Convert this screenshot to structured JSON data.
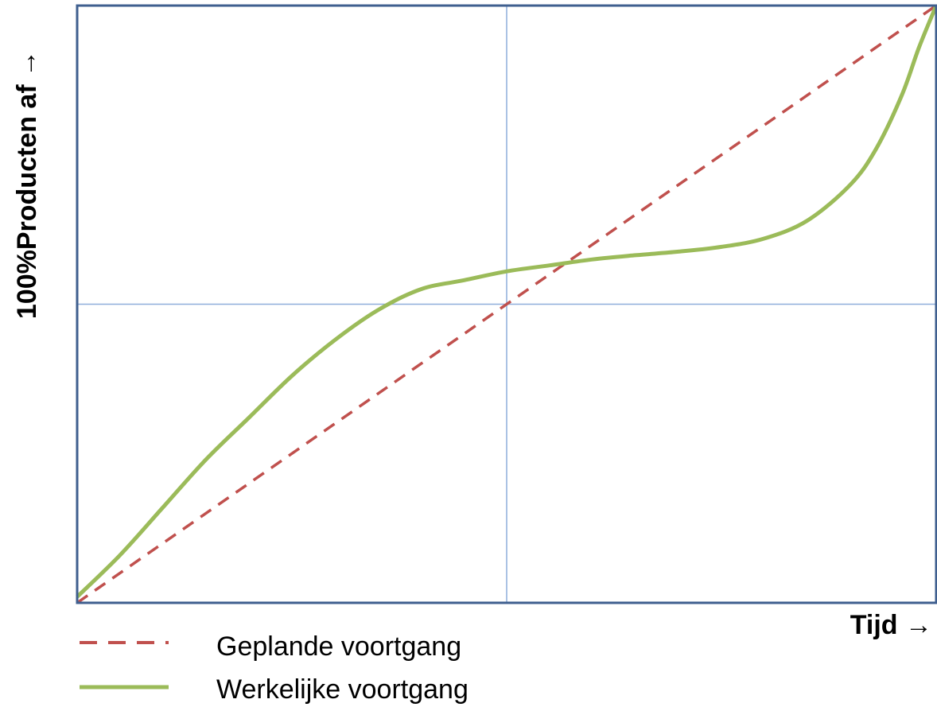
{
  "chart_data": {
    "type": "line",
    "xlabel": "Tijd →",
    "ylabel": "100%Producten af →",
    "xlim": [
      0,
      1
    ],
    "ylim": [
      0,
      1
    ],
    "grid": {
      "x": [
        0.5
      ],
      "y": [
        0.5
      ]
    },
    "legend": "bottom-left",
    "series": [
      {
        "name": "Geplande voortgang",
        "color": "#c0504d",
        "style": "dashed",
        "x": [
          0,
          1
        ],
        "y": [
          0,
          1
        ]
      },
      {
        "name": "Werkelijke voortgang",
        "color": "#9bbb59",
        "style": "solid",
        "x": [
          0,
          0.05,
          0.1,
          0.15,
          0.2,
          0.25,
          0.3,
          0.35,
          0.4,
          0.45,
          0.5,
          0.55,
          0.6,
          0.65,
          0.7,
          0.75,
          0.8,
          0.85,
          0.9,
          0.93,
          0.96,
          0.98,
          1.0
        ],
        "y": [
          0.01,
          0.08,
          0.16,
          0.24,
          0.31,
          0.38,
          0.44,
          0.49,
          0.525,
          0.54,
          0.555,
          0.565,
          0.575,
          0.582,
          0.588,
          0.596,
          0.61,
          0.64,
          0.7,
          0.76,
          0.85,
          0.93,
          1.0
        ]
      }
    ],
    "colors": {
      "frame": "#3f5f8f",
      "gridline": "#8eaedb"
    }
  }
}
